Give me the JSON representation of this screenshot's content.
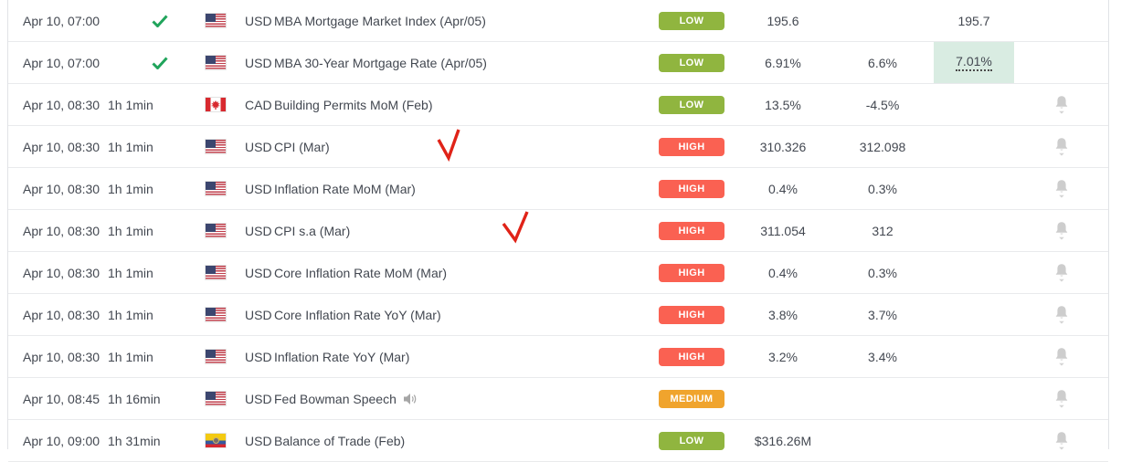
{
  "calendar": {
    "importance_colors": {
      "LOW": "#90b53f",
      "HIGH": "#fa6152",
      "MEDIUM": "#f0a42d"
    },
    "released_check_color": "#20a45b",
    "actual_highlight_color": "#d9ece2",
    "annotation_color": "#e02318",
    "text_color": "#434851",
    "rows": [
      {
        "time": "Apr 10, 07:00",
        "released": true,
        "countdown": "",
        "country": "us",
        "currency": "USD",
        "event": "MBA Mortgage Market Index (Apr/05)",
        "has_speech_icon": false,
        "importance": "LOW",
        "previous": "195.6",
        "consensus": "",
        "actual": "195.7",
        "actual_highlighted": false,
        "has_alert_bell": false
      },
      {
        "time": "Apr 10, 07:00",
        "released": true,
        "countdown": "",
        "country": "us",
        "currency": "USD",
        "event": "MBA 30-Year Mortgage Rate (Apr/05)",
        "has_speech_icon": false,
        "importance": "LOW",
        "previous": "6.91%",
        "consensus": "6.6%",
        "actual": "7.01%",
        "actual_highlighted": true,
        "has_alert_bell": false
      },
      {
        "time": "Apr 10, 08:30",
        "released": false,
        "countdown": "1h 1min",
        "country": "ca",
        "currency": "CAD",
        "event": "Building Permits MoM (Feb)",
        "has_speech_icon": false,
        "importance": "LOW",
        "previous": "13.5%",
        "consensus": "-4.5%",
        "actual": "",
        "actual_highlighted": false,
        "has_alert_bell": true
      },
      {
        "time": "Apr 10, 08:30",
        "released": false,
        "countdown": "1h 1min",
        "country": "us",
        "currency": "USD",
        "event": "CPI (Mar)",
        "has_speech_icon": false,
        "importance": "HIGH",
        "previous": "310.326",
        "consensus": "312.098",
        "actual": "",
        "actual_highlighted": false,
        "has_alert_bell": true
      },
      {
        "time": "Apr 10, 08:30",
        "released": false,
        "countdown": "1h 1min",
        "country": "us",
        "currency": "USD",
        "event": "Inflation Rate MoM (Mar)",
        "has_speech_icon": false,
        "importance": "HIGH",
        "previous": "0.4%",
        "consensus": "0.3%",
        "actual": "",
        "actual_highlighted": false,
        "has_alert_bell": true
      },
      {
        "time": "Apr 10, 08:30",
        "released": false,
        "countdown": "1h 1min",
        "country": "us",
        "currency": "USD",
        "event": "CPI s.a (Mar)",
        "has_speech_icon": false,
        "importance": "HIGH",
        "previous": "311.054",
        "consensus": "312",
        "actual": "",
        "actual_highlighted": false,
        "has_alert_bell": true
      },
      {
        "time": "Apr 10, 08:30",
        "released": false,
        "countdown": "1h 1min",
        "country": "us",
        "currency": "USD",
        "event": "Core Inflation Rate MoM (Mar)",
        "has_speech_icon": false,
        "importance": "HIGH",
        "previous": "0.4%",
        "consensus": "0.3%",
        "actual": "",
        "actual_highlighted": false,
        "has_alert_bell": true
      },
      {
        "time": "Apr 10, 08:30",
        "released": false,
        "countdown": "1h 1min",
        "country": "us",
        "currency": "USD",
        "event": "Core Inflation Rate YoY (Mar)",
        "has_speech_icon": false,
        "importance": "HIGH",
        "previous": "3.8%",
        "consensus": "3.7%",
        "actual": "",
        "actual_highlighted": false,
        "has_alert_bell": true
      },
      {
        "time": "Apr 10, 08:30",
        "released": false,
        "countdown": "1h 1min",
        "country": "us",
        "currency": "USD",
        "event": "Inflation Rate YoY (Mar)",
        "has_speech_icon": false,
        "importance": "HIGH",
        "previous": "3.2%",
        "consensus": "3.4%",
        "actual": "",
        "actual_highlighted": false,
        "has_alert_bell": true
      },
      {
        "time": "Apr 10, 08:45",
        "released": false,
        "countdown": "1h 16min",
        "country": "us",
        "currency": "USD",
        "event": "Fed Bowman Speech",
        "has_speech_icon": true,
        "importance": "MEDIUM",
        "previous": "",
        "consensus": "",
        "actual": "",
        "actual_highlighted": false,
        "has_alert_bell": true
      },
      {
        "time": "Apr 10, 09:00",
        "released": false,
        "countdown": "1h 31min",
        "country": "ec",
        "currency": "USD",
        "event": "Balance of Trade (Feb)",
        "has_speech_icon": false,
        "importance": "LOW",
        "previous": "$316.26M",
        "consensus": "",
        "actual": "",
        "actual_highlighted": false,
        "has_alert_bell": true
      }
    ],
    "annotations": [
      {
        "type": "red-checkmark",
        "target_event": "CPI (Mar)"
      },
      {
        "type": "red-checkmark",
        "target_event": "CPI s.a (Mar)"
      }
    ]
  }
}
